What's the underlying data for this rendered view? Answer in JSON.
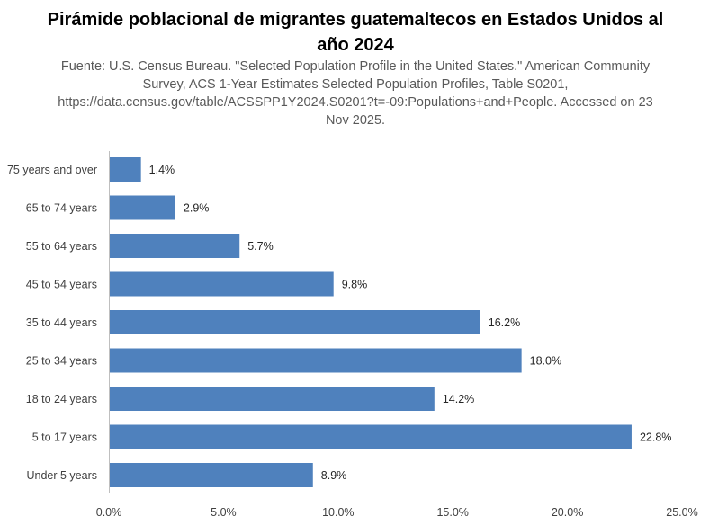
{
  "chart_data": {
    "type": "bar",
    "orientation": "horizontal",
    "title": "Pirámide poblacional de migrantes guatemaltecos en Estados Unidos al año 2024",
    "subtitle": "Fuente: U.S. Census Bureau. \"Selected Population Profile in the United States.\" American Community Survey, ACS 1-Year Estimates Selected Population Profiles, Table S0201, https://data.census.gov/table/ACSSPP1Y2024.S0201?t=-09:Populations+and+People. Accessed on 23 Nov 2025.",
    "categories": [
      "75 years and over",
      "65 to 74 years",
      "55 to 64 years",
      "45 to 54 years",
      "35 to 44 years",
      "25 to 34 years",
      "18 to 24 years",
      "5 to 17 years",
      "Under 5 years"
    ],
    "values": [
      1.4,
      2.9,
      5.7,
      9.8,
      16.2,
      18.0,
      14.2,
      22.8,
      8.9
    ],
    "data_labels": [
      "1.4%",
      "2.9%",
      "5.7%",
      "9.8%",
      "16.2%",
      "18.0%",
      "14.2%",
      "22.8%",
      "8.9%"
    ],
    "xlim": [
      0,
      25
    ],
    "x_ticks": [
      0,
      5,
      10,
      15,
      20,
      25
    ],
    "x_tick_labels": [
      "0.0%",
      "5.0%",
      "10.0%",
      "15.0%",
      "20.0%",
      "25.0%"
    ],
    "xlabel": "",
    "ylabel": "",
    "grid": false,
    "legend": "none",
    "bar_color": "#4F81BD"
  }
}
